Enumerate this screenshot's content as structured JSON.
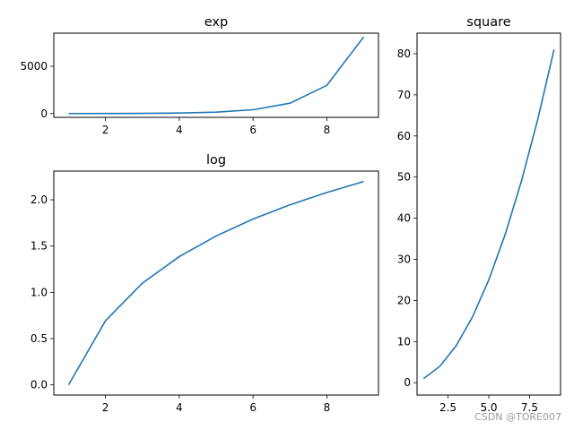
{
  "chart_data": [
    {
      "id": "exp",
      "type": "line",
      "title": "exp",
      "xlabel": "",
      "ylabel": "",
      "x": [
        1,
        2,
        3,
        4,
        5,
        6,
        7,
        8,
        9
      ],
      "series": [
        {
          "values": [
            2.718,
            7.389,
            20.09,
            54.6,
            148.4,
            403.4,
            1096.6,
            2981.0,
            8103.1
          ]
        }
      ],
      "xlim": [
        0.6,
        9.4
      ],
      "ylim": [
        -400,
        8500
      ],
      "xticks": [
        2,
        4,
        6,
        8
      ],
      "yticks": [
        0,
        5000
      ],
      "xtick_labels": [
        "2",
        "4",
        "6",
        "8"
      ],
      "ytick_labels": [
        "0",
        "5000"
      ],
      "grid": false,
      "color": "#1f77b4"
    },
    {
      "id": "log",
      "type": "line",
      "title": "log",
      "xlabel": "",
      "ylabel": "",
      "x": [
        1,
        2,
        3,
        4,
        5,
        6,
        7,
        8,
        9
      ],
      "series": [
        {
          "values": [
            0.0,
            0.693,
            1.099,
            1.386,
            1.609,
            1.792,
            1.946,
            2.079,
            2.197
          ]
        }
      ],
      "xlim": [
        0.6,
        9.4
      ],
      "ylim": [
        -0.11,
        2.31
      ],
      "xticks": [
        2,
        4,
        6,
        8
      ],
      "yticks": [
        0.0,
        0.5,
        1.0,
        1.5,
        2.0
      ],
      "xtick_labels": [
        "2",
        "4",
        "6",
        "8"
      ],
      "ytick_labels": [
        "0.0",
        "0.5",
        "1.0",
        "1.5",
        "2.0"
      ],
      "grid": false,
      "color": "#1f77b4"
    },
    {
      "id": "square",
      "type": "line",
      "title": "square",
      "xlabel": "",
      "ylabel": "",
      "x": [
        1,
        2,
        3,
        4,
        5,
        6,
        7,
        8,
        9
      ],
      "series": [
        {
          "values": [
            1,
            4,
            9,
            16,
            25,
            36,
            49,
            64,
            81
          ]
        }
      ],
      "xlim": [
        0.6,
        9.4
      ],
      "ylim": [
        -3,
        85
      ],
      "xticks": [
        2.5,
        5.0,
        7.5
      ],
      "yticks": [
        0,
        10,
        20,
        30,
        40,
        50,
        60,
        70,
        80
      ],
      "xtick_labels": [
        "2.5",
        "5.0",
        "7.5"
      ],
      "ytick_labels": [
        "0",
        "10",
        "20",
        "30",
        "40",
        "50",
        "60",
        "70",
        "80"
      ],
      "grid": false,
      "color": "#1f77b4"
    }
  ],
  "watermark": "CSDN @TORE007"
}
